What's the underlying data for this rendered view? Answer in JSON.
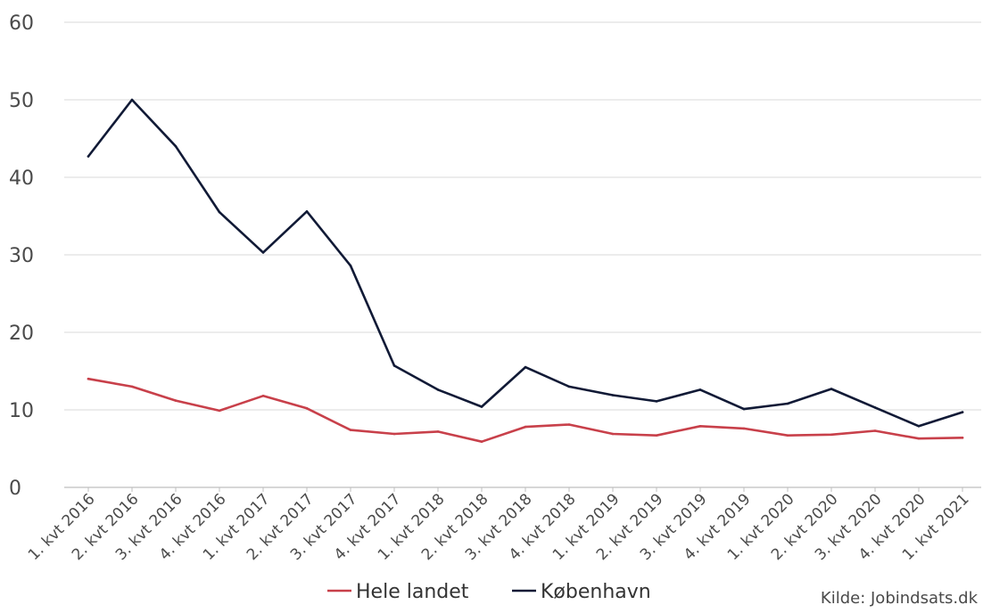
{
  "chart_data": {
    "type": "line",
    "categories": [
      "1. kvt 2016",
      "2. kvt 2016",
      "3. kvt 2016",
      "4. kvt 2016",
      "1. kvt 2017",
      "2. kvt 2017",
      "3. kvt 2017",
      "4. kvt 2017",
      "1. kvt 2018",
      "2. kvt 2018",
      "3. kvt 2018",
      "4. kvt 2018",
      "1. kvt 2019",
      "2. kvt 2019",
      "3. kvt 2019",
      "4. kvt 2019",
      "1. kvt 2020",
      "2. kvt 2020",
      "3. kvt 2020",
      "4. kvt 2020",
      "1. kvt 2021"
    ],
    "series": [
      {
        "name": "Hele landet",
        "color": "#c8404a",
        "values": [
          14.0,
          13.0,
          11.2,
          9.9,
          11.8,
          10.2,
          7.4,
          6.9,
          7.2,
          5.9,
          7.8,
          8.1,
          6.9,
          6.7,
          7.9,
          7.6,
          6.7,
          6.8,
          7.3,
          6.3,
          6.4
        ]
      },
      {
        "name": "København",
        "color": "#111a36",
        "values": [
          42.7,
          50.0,
          44.0,
          35.5,
          30.3,
          35.6,
          28.6,
          15.7,
          12.6,
          10.4,
          15.5,
          13.0,
          11.9,
          11.1,
          12.6,
          10.1,
          10.8,
          12.7,
          10.3,
          7.9,
          9.7
        ]
      }
    ],
    "title": "",
    "xlabel": "",
    "ylabel": "",
    "ylim": [
      0,
      60
    ],
    "yticks": [
      0,
      10,
      20,
      30,
      40,
      50,
      60
    ],
    "grid": true,
    "legend_position": "bottom-center",
    "source": "Kilde: Jobindsats.dk"
  }
}
